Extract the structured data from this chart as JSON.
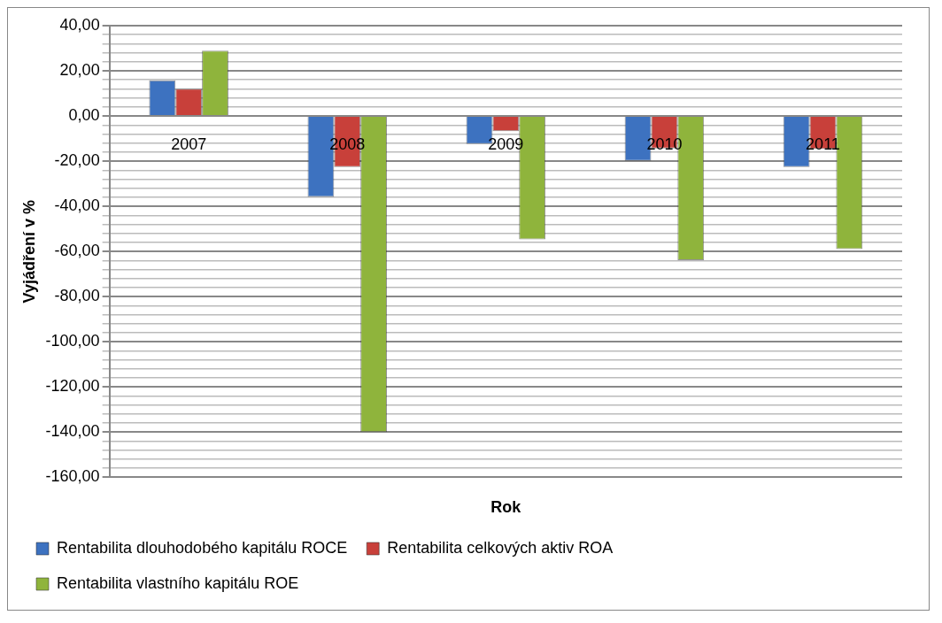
{
  "chart_data": {
    "type": "bar",
    "xlabel": "Rok",
    "ylabel": "Vyjádření v %",
    "categories": [
      "2007",
      "2008",
      "2009",
      "2010",
      "2011"
    ],
    "series": [
      {
        "name": "Rentabilita dlouhodobého kapitálu ROCE",
        "color": "#3d72c0",
        "values": [
          15.8,
          -35.8,
          -12.4,
          -19.9,
          -22.6
        ]
      },
      {
        "name": "Rentabilita celkových aktiv ROA",
        "color": "#c8403a",
        "values": [
          12.1,
          -22.6,
          -6.7,
          -14.4,
          -14.7
        ]
      },
      {
        "name": "Rentabilita vlastního kapitálu ROE",
        "color": "#8fb43c",
        "values": [
          28.9,
          -140,
          -54.6,
          -63.8,
          -58.9
        ]
      }
    ],
    "ylim": [
      -160,
      40
    ],
    "yticks": [
      {
        "value": -160,
        "label": "-160,00"
      },
      {
        "value": -156,
        "label": null
      },
      {
        "value": -152,
        "label": null
      },
      {
        "value": -148,
        "label": null
      },
      {
        "value": -144,
        "label": null
      },
      {
        "value": -140,
        "label": "-140,00"
      },
      {
        "value": -136,
        "label": null
      },
      {
        "value": -132,
        "label": null
      },
      {
        "value": -128,
        "label": null
      },
      {
        "value": -124,
        "label": null
      },
      {
        "value": -120,
        "label": "-120,00"
      },
      {
        "value": -116,
        "label": null
      },
      {
        "value": -112,
        "label": null
      },
      {
        "value": -108,
        "label": null
      },
      {
        "value": -104,
        "label": null
      },
      {
        "value": -100,
        "label": "-100,00"
      },
      {
        "value": -96,
        "label": null
      },
      {
        "value": -92,
        "label": null
      },
      {
        "value": -88,
        "label": null
      },
      {
        "value": -84,
        "label": null
      },
      {
        "value": -80,
        "label": "-80,00"
      },
      {
        "value": -76,
        "label": null
      },
      {
        "value": -72,
        "label": null
      },
      {
        "value": -68,
        "label": null
      },
      {
        "value": -64,
        "label": null
      },
      {
        "value": -60,
        "label": "-60,00"
      },
      {
        "value": -56,
        "label": null
      },
      {
        "value": -52,
        "label": null
      },
      {
        "value": -48,
        "label": null
      },
      {
        "value": -44,
        "label": null
      },
      {
        "value": -40,
        "label": "-40,00"
      },
      {
        "value": -36,
        "label": null
      },
      {
        "value": -32,
        "label": null
      },
      {
        "value": -28,
        "label": null
      },
      {
        "value": -24,
        "label": null
      },
      {
        "value": -20,
        "label": "-20,00"
      },
      {
        "value": -16,
        "label": null
      },
      {
        "value": -12,
        "label": null
      },
      {
        "value": -8,
        "label": null
      },
      {
        "value": -4,
        "label": null
      },
      {
        "value": 0,
        "label": "0,00"
      },
      {
        "value": 4,
        "label": null
      },
      {
        "value": 8,
        "label": null
      },
      {
        "value": 12,
        "label": null
      },
      {
        "value": 16,
        "label": null
      },
      {
        "value": 20,
        "label": "20,00"
      },
      {
        "value": 24,
        "label": null
      },
      {
        "value": 28,
        "label": null
      },
      {
        "value": 32,
        "label": null
      },
      {
        "value": 36,
        "label": null
      },
      {
        "value": 40,
        "label": "40,00"
      }
    ],
    "grid": "y",
    "legend": "bottom"
  }
}
